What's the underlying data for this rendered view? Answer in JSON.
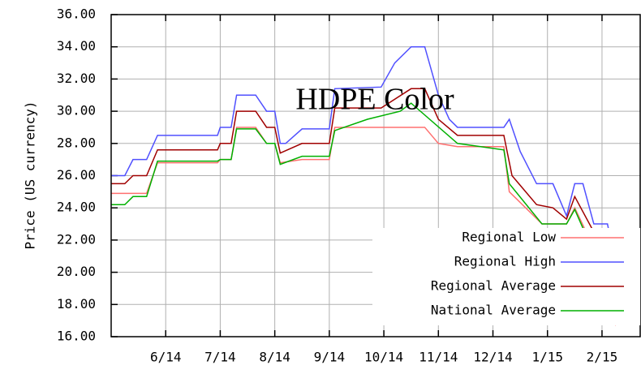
{
  "chart_data": {
    "type": "line",
    "title": "HDPE Color",
    "y_label": "Price (US currency)",
    "xlim": [
      0,
      9.7
    ],
    "xticks": [
      {
        "value": 1,
        "label": "6/14"
      },
      {
        "value": 2,
        "label": "7/14"
      },
      {
        "value": 3,
        "label": "8/14"
      },
      {
        "value": 4,
        "label": "9/14"
      },
      {
        "value": 5,
        "label": "10/14"
      },
      {
        "value": 6,
        "label": "11/14"
      },
      {
        "value": 7,
        "label": "12/14"
      },
      {
        "value": 8,
        "label": "1/15"
      },
      {
        "value": 9,
        "label": "2/15"
      }
    ],
    "ylim": [
      16,
      36
    ],
    "yticks": [
      {
        "value": 16,
        "label": "16.00"
      },
      {
        "value": 18,
        "label": "18.00"
      },
      {
        "value": 20,
        "label": "20.00"
      },
      {
        "value": 22,
        "label": "22.00"
      },
      {
        "value": 24,
        "label": "24.00"
      },
      {
        "value": 26,
        "label": "26.00"
      },
      {
        "value": 28,
        "label": "28.00"
      },
      {
        "value": 30,
        "label": "30.00"
      },
      {
        "value": 32,
        "label": "32.00"
      },
      {
        "value": 34,
        "label": "34.00"
      },
      {
        "value": 36,
        "label": "36.00"
      }
    ],
    "grid": true,
    "legend": "lower right",
    "series": [
      {
        "name": "Regional Low",
        "color": "#ff7070",
        "x": [
          0,
          0.65,
          0.85,
          1.95,
          2.0,
          2.2,
          2.3,
          2.65,
          2.85,
          3.0,
          3.1,
          3.5,
          4.0,
          4.1,
          5.75,
          6.0,
          6.35,
          7.2,
          7.3,
          7.9,
          8.35,
          8.5,
          8.85,
          9.1,
          9.25,
          9.4,
          9.7
        ],
        "values": [
          24.9,
          24.9,
          26.8,
          26.8,
          27,
          27,
          29,
          29,
          28,
          28,
          26.8,
          27,
          27,
          29,
          29,
          28,
          27.8,
          27.8,
          25,
          23,
          23,
          24,
          21.5,
          21.5,
          16.8,
          18,
          18
        ]
      },
      {
        "name": "Regional High",
        "color": "#5050ff",
        "x": [
          0,
          0.25,
          0.4,
          0.65,
          0.85,
          1.95,
          2.0,
          2.2,
          2.3,
          2.65,
          2.85,
          3.0,
          3.1,
          3.2,
          3.5,
          4.0,
          4.1,
          4.95,
          5.2,
          5.5,
          5.75,
          6.0,
          6.2,
          6.35,
          7.2,
          7.3,
          7.5,
          7.8,
          8.1,
          8.35,
          8.5,
          8.65,
          8.85,
          9.1,
          9.25,
          9.45,
          9.6,
          9.7
        ],
        "values": [
          26,
          26,
          27,
          27,
          28.5,
          28.5,
          29,
          29,
          31,
          31,
          30,
          30,
          28,
          28,
          28.9,
          28.9,
          31.4,
          31.5,
          33,
          34,
          34,
          31,
          29.5,
          29,
          29,
          29.5,
          27.5,
          25.5,
          25.5,
          23.5,
          25.5,
          25.5,
          23,
          23,
          20.5,
          19.4,
          19.4,
          20
        ]
      },
      {
        "name": "Regional Average",
        "color": "#a00000",
        "x": [
          0,
          0.25,
          0.4,
          0.65,
          0.85,
          1.95,
          2.0,
          2.2,
          2.3,
          2.65,
          2.85,
          3.0,
          3.1,
          3.5,
          4.0,
          4.1,
          4.95,
          5.5,
          5.75,
          6.0,
          6.35,
          7.2,
          7.35,
          7.8,
          8.1,
          8.35,
          8.5,
          8.85,
          9.1,
          9.25,
          9.4,
          9.7
        ],
        "values": [
          25.5,
          25.5,
          26,
          26,
          27.6,
          27.6,
          28,
          28,
          30,
          30,
          29,
          29,
          27.4,
          28,
          28,
          30.2,
          30.2,
          31.4,
          31.4,
          29.5,
          28.5,
          28.5,
          26,
          24.2,
          24,
          23.3,
          24.7,
          22.5,
          22.5,
          17.8,
          18.6,
          19
        ]
      },
      {
        "name": "National Average",
        "color": "#00b000",
        "x": [
          0,
          0.25,
          0.4,
          0.65,
          0.85,
          1.95,
          2.0,
          2.2,
          2.3,
          2.65,
          2.85,
          3.0,
          3.1,
          3.5,
          4.0,
          4.1,
          4.7,
          5.3,
          5.5,
          6.35,
          7.2,
          7.3,
          7.9,
          8.35,
          8.5,
          8.85,
          9.1,
          9.25,
          9.5,
          9.7
        ],
        "values": [
          24.2,
          24.2,
          24.7,
          24.7,
          26.9,
          26.9,
          27,
          27,
          28.9,
          28.9,
          28,
          28,
          26.7,
          27.2,
          27.2,
          28.8,
          29.5,
          30,
          30.5,
          28,
          27.6,
          25.5,
          23,
          23,
          23.9,
          21.2,
          20.8,
          17.5,
          18,
          18.1
        ]
      }
    ]
  }
}
